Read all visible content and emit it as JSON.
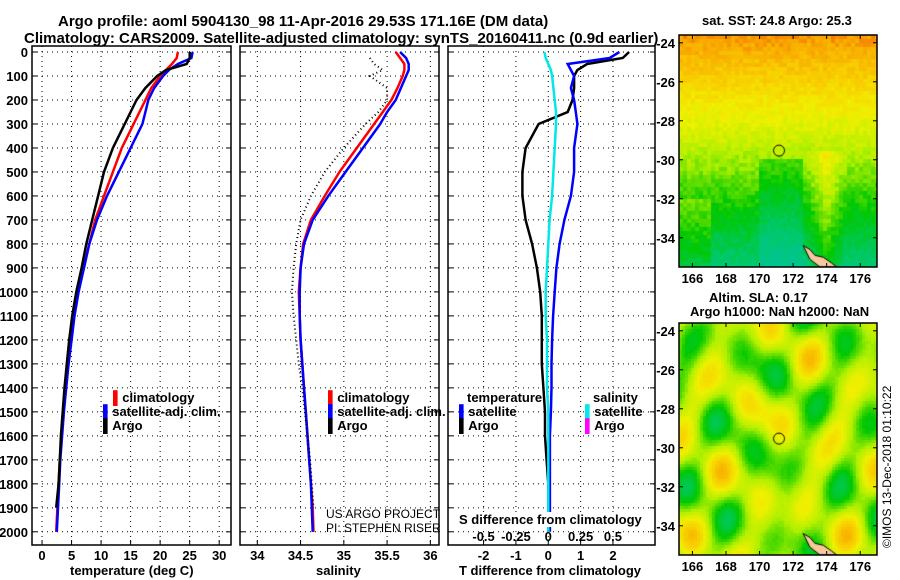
{
  "title_line1": "Argo profile: aoml 5904130_98 11-Apr-2016 29.53S 171.16E (DM data)",
  "title_line2": "Climatology: CARS2009. Satellite-adjusted climatology: synTS_20160411.nc (0.9d earlier)",
  "copyright": "©IMOS 13-Dec-2018 01:10:22",
  "colors": {
    "climatology": "#ff0000",
    "satellite": "#0000ff",
    "argo": "#000000",
    "sal_satellite": "#00e8e8",
    "sal_argo": "#ff00ff"
  },
  "chart_data": [
    {
      "type": "line",
      "id": "temperature",
      "xlabel": "temperature (deg C)",
      "ylabel": "",
      "xlim": [
        -1.7,
        32
      ],
      "ylim": [
        2055,
        -25
      ],
      "xticks": [
        0,
        5,
        10,
        15,
        20,
        25,
        30
      ],
      "xtick_labels": [
        "0",
        "5",
        "10",
        "15",
        "20",
        "25",
        "30"
      ],
      "yticks": [
        0,
        100,
        200,
        300,
        400,
        500,
        600,
        700,
        800,
        900,
        1000,
        1100,
        1200,
        1300,
        1400,
        1500,
        1600,
        1700,
        1800,
        1900,
        2000
      ],
      "ytick_labels": [
        "0",
        "100",
        "200",
        "300",
        "400",
        "500",
        "600",
        "700",
        "800",
        "900",
        "1000",
        "1100",
        "1200",
        "1300",
        "1400",
        "1500",
        "1600",
        "1700",
        "1800",
        "1900",
        "2000"
      ],
      "grid": true,
      "depth": [
        0,
        25,
        50,
        75,
        100,
        150,
        200,
        250,
        300,
        400,
        500,
        600,
        700,
        800,
        900,
        1000,
        1100,
        1200,
        1300,
        1400,
        1500,
        1600,
        1700,
        1800,
        1900,
        2000
      ],
      "series": [
        {
          "name": "climatology",
          "values": [
            23,
            22.8,
            22,
            21,
            20,
            18.5,
            17.5,
            16.5,
            15.5,
            13.5,
            12,
            10.5,
            9,
            8,
            7,
            6,
            5.3,
            4.8,
            4.3,
            3.9,
            3.6,
            3.3,
            3.0,
            2.8,
            2.6,
            2.4
          ]
        },
        {
          "name": "satellite-adj. clim.",
          "values": [
            25.5,
            25.3,
            23,
            21.5,
            20.5,
            19,
            18,
            17.5,
            17,
            15,
            13,
            11,
            9.3,
            8,
            7.1,
            6.2,
            5.5,
            5,
            4.5,
            4.1,
            3.7,
            3.4,
            3.1,
            2.9,
            2.7,
            2.5
          ]
        },
        {
          "name": "Argo",
          "values": [
            25,
            25,
            24.5,
            21,
            19.5,
            17.5,
            16,
            15,
            14,
            12,
            10.5,
            9.5,
            8.5,
            7.5,
            6.7,
            5.8,
            5.1,
            4.6,
            4.2,
            3.8,
            3.5,
            3.2,
            3.0,
            2.8,
            2.4,
            null
          ]
        }
      ],
      "legend": [
        "climatology",
        "satellite-adj. clim.",
        "Argo"
      ],
      "legend_position": "center"
    },
    {
      "type": "line",
      "id": "salinity",
      "xlabel": "salinity",
      "xlim": [
        33.8,
        36.1
      ],
      "xticks": [
        34,
        34.5,
        35,
        35.5,
        36
      ],
      "xtick_labels": [
        "34",
        "34.5",
        "35",
        "35.5",
        "36"
      ],
      "grid": true,
      "depth": [
        0,
        25,
        50,
        75,
        100,
        150,
        200,
        250,
        300,
        400,
        500,
        600,
        700,
        800,
        900,
        1000,
        1100,
        1200,
        1300,
        1400,
        1500,
        1600,
        1700,
        1800,
        1900,
        2000
      ],
      "series": [
        {
          "name": "climatology",
          "values": [
            35.6,
            35.65,
            35.7,
            35.7,
            35.68,
            35.62,
            35.55,
            35.45,
            35.35,
            35.15,
            34.95,
            34.78,
            34.62,
            34.53,
            34.5,
            34.48,
            34.49,
            34.5,
            34.52,
            34.54,
            34.56,
            34.58,
            34.6,
            34.62,
            34.64,
            34.65
          ]
        },
        {
          "name": "satellite-adj. clim.",
          "values": [
            35.65,
            35.72,
            35.75,
            35.75,
            35.72,
            35.66,
            35.6,
            35.5,
            35.42,
            35.22,
            35.02,
            34.82,
            34.64,
            34.54,
            34.5,
            34.49,
            34.49,
            34.5,
            34.52,
            34.54,
            34.56,
            34.58,
            34.6,
            34.62,
            34.63,
            34.64
          ]
        },
        {
          "name": "Argo",
          "values": [
            null,
            35.3,
            35.35,
            35.45,
            35.3,
            35.5,
            35.5,
            35.4,
            35.25,
            35.0,
            34.78,
            34.62,
            34.5,
            34.45,
            34.42,
            34.4,
            34.42,
            34.45,
            34.48,
            34.52,
            34.55,
            34.58,
            34.61,
            34.63,
            34.65,
            null
          ]
        }
      ],
      "legend": [
        "climatology",
        "satellite-adj. clim.",
        "Argo"
      ],
      "legend_position": "center-right",
      "annotations": [
        "US ARGO PROJECT",
        "PI: STEPHEN RISER"
      ]
    },
    {
      "type": "line",
      "id": "difference",
      "xlabel": "T difference from climatology",
      "xlabel2": "S difference from climatology",
      "xlim": [
        -3.1,
        3.3
      ],
      "xlim_S": [
        -0.775,
        0.825
      ],
      "xticks": [
        -2,
        -1,
        0,
        1,
        2
      ],
      "xtick_labels": [
        "-2",
        "-1",
        "0",
        "1",
        "2"
      ],
      "xticks_S": [
        -0.5,
        -0.25,
        0,
        0.25,
        0.5
      ],
      "xtick_labels_S": [
        "-0.5",
        "-0.25",
        "0",
        "0.25",
        "0.5"
      ],
      "grid": true,
      "depth": [
        0,
        25,
        50,
        75,
        100,
        150,
        200,
        250,
        300,
        400,
        500,
        600,
        700,
        800,
        900,
        1000,
        1100,
        1200,
        1300,
        1400,
        1500,
        1600,
        1700,
        1800,
        1900,
        2000
      ],
      "series": [
        {
          "name": "temperature Argo",
          "axis": "T",
          "values": [
            2.5,
            2.3,
            1.2,
            0.9,
            0.8,
            0.8,
            0.75,
            0.6,
            -0.3,
            -0.7,
            -0.8,
            -0.8,
            -0.7,
            -0.5,
            -0.35,
            -0.25,
            -0.2,
            -0.2,
            -0.2,
            -0.15,
            -0.1,
            -0.1,
            -0.05,
            0,
            0,
            0
          ]
        },
        {
          "name": "temperature satellite",
          "axis": "T",
          "values": [
            2.2,
            1.9,
            0.6,
            0.7,
            0.8,
            0.7,
            0.8,
            0.85,
            0.9,
            0.8,
            0.8,
            0.7,
            0.5,
            0.35,
            0.25,
            0.2,
            0.15,
            0.12,
            0.1,
            0.1,
            0.08,
            0.05,
            0.05,
            0.05,
            0.05,
            0.05
          ]
        },
        {
          "name": "salinity satellite",
          "axis": "S",
          "values": [
            -0.03,
            -0.02,
            0.0,
            0.02,
            0.03,
            0.04,
            0.05,
            0.06,
            0.06,
            0.05,
            0.04,
            0.03,
            0.01,
            0.0,
            -0.01,
            -0.02,
            -0.02,
            -0.01,
            -0.01,
            -0.01,
            0,
            0,
            0,
            0,
            0,
            0
          ]
        }
      ],
      "legend_T": {
        "title": "temperature",
        "items": [
          "satellite",
          "Argo"
        ]
      },
      "legend_S": {
        "title": "salinity",
        "items": [
          "satellite",
          "Argo"
        ]
      }
    },
    {
      "type": "heatmap",
      "id": "sst_map",
      "title": "sat. SST: 24.8 Argo: 25.3",
      "xlim": [
        165.2,
        177.0
      ],
      "ylim": [
        -35.5,
        -23.6
      ],
      "xtick_labels": [
        "166",
        "168",
        "170",
        "172",
        "174",
        "176"
      ],
      "xticks": [
        166,
        168,
        170,
        172,
        174,
        176
      ],
      "yticks": [
        -24,
        -26,
        -28,
        -30,
        -32,
        -34
      ],
      "ytick_labels": [
        "-24",
        "-26",
        "-28",
        "-30",
        "-32",
        "-34"
      ],
      "marker": {
        "lon": 171.16,
        "lat": -29.53
      }
    },
    {
      "type": "heatmap",
      "id": "sla_map",
      "title": "Altim. SLA: 0.17",
      "subtitle": "Argo h1000: NaN h2000: NaN",
      "xlim": [
        165.2,
        177.0
      ],
      "ylim": [
        -35.5,
        -23.6
      ],
      "xtick_labels": [
        "166",
        "168",
        "170",
        "172",
        "174",
        "176"
      ],
      "xticks": [
        166,
        168,
        170,
        172,
        174,
        176
      ],
      "yticks": [
        -24,
        -26,
        -28,
        -30,
        -32,
        -34
      ],
      "ytick_labels": [
        "-24",
        "-26",
        "-28",
        "-30",
        "-32",
        "-34"
      ],
      "marker": {
        "lon": 171.16,
        "lat": -29.53
      }
    }
  ]
}
